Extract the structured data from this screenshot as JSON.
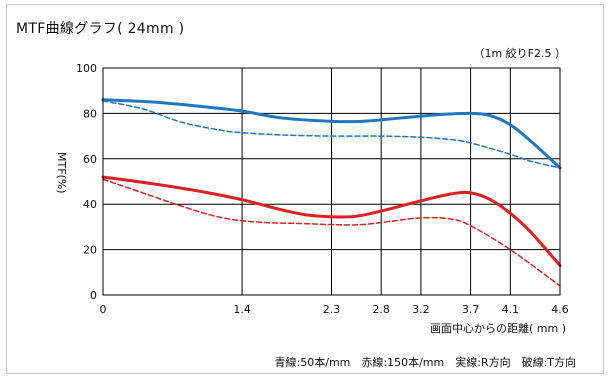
{
  "chart_data": {
    "type": "line",
    "title": "MTF曲線グラフ( 24mm )",
    "subtitle": "（1m 絞りF2.5 ）",
    "xlabel": "画面中心からの距離( mm )",
    "ylabel": "MTF(%)",
    "note": "青線:50本/mm　赤線:150本/mm　実線:R方向　破線:T方向",
    "xlim": [
      0,
      4.6
    ],
    "ylim": [
      0,
      100
    ],
    "x_ticks": [
      0,
      1.4,
      2.3,
      2.8,
      3.2,
      3.7,
      4.1,
      4.6
    ],
    "x_tick_labels": [
      "0",
      "1.4",
      "2.3",
      "2.8",
      "3.2",
      "3.7",
      "4.1",
      "4.6"
    ],
    "y_ticks": [
      0,
      20,
      40,
      60,
      80,
      100
    ],
    "y_tick_labels": [
      "0",
      "20",
      "40",
      "60",
      "80",
      "100"
    ],
    "grid": true,
    "series": [
      {
        "color": "#1f77c0",
        "style": "solid",
        "width": 3,
        "x": [
          0,
          0.5,
          1.0,
          1.4,
          1.8,
          2.3,
          2.6,
          3.0,
          3.4,
          3.7,
          3.9,
          4.1,
          4.3,
          4.6
        ],
        "y": [
          86,
          85,
          83,
          81,
          78,
          76.5,
          76.5,
          78,
          79.5,
          80,
          79,
          75,
          68,
          56
        ]
      },
      {
        "color": "#1f77c0",
        "style": "dashed",
        "width": 1.5,
        "x": [
          0,
          0.4,
          0.8,
          1.2,
          1.4,
          1.8,
          2.3,
          2.8,
          3.2,
          3.5,
          3.7,
          4.1,
          4.3,
          4.6
        ],
        "y": [
          85.5,
          82,
          76,
          72.5,
          71.5,
          70.5,
          70,
          70,
          69.5,
          68.5,
          67,
          62,
          59,
          56
        ]
      },
      {
        "color": "#e02020",
        "style": "solid",
        "width": 3,
        "x": [
          0,
          0.5,
          1.0,
          1.4,
          1.8,
          2.1,
          2.5,
          2.8,
          3.2,
          3.5,
          3.7,
          3.9,
          4.1,
          4.3,
          4.6
        ],
        "y": [
          52,
          49,
          45.5,
          42,
          37.5,
          35,
          34.5,
          37,
          41.5,
          44.5,
          45,
          42,
          36,
          28,
          13
        ]
      },
      {
        "color": "#e02020",
        "style": "dashed",
        "width": 1.5,
        "x": [
          0,
          0.4,
          0.8,
          1.2,
          1.6,
          2.0,
          2.3,
          2.6,
          2.9,
          3.2,
          3.5,
          3.7,
          4.1,
          4.6
        ],
        "y": [
          51,
          45,
          39,
          34,
          32,
          31.5,
          31,
          31,
          32.5,
          34,
          33.5,
          30.5,
          20,
          4
        ]
      }
    ]
  }
}
